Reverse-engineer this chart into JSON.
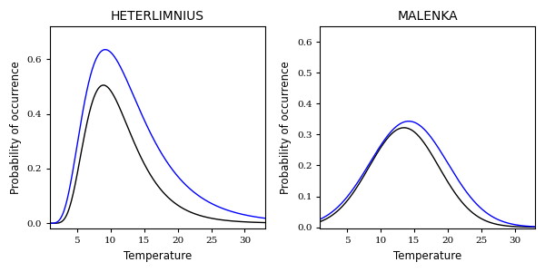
{
  "panels": [
    {
      "title": "HETERLIMNIUS",
      "xlabel": "Temperature",
      "ylabel": "Probability of occurrence",
      "xlim": [
        1,
        33
      ],
      "ylim": [
        -0.02,
        0.72
      ],
      "yticks": [
        0.0,
        0.2,
        0.4,
        0.6
      ],
      "xticks": [
        5,
        10,
        15,
        20,
        25,
        30
      ],
      "black_curve": {
        "type": "lognormal",
        "mu_log": 2.19,
        "sigma_log": 0.4,
        "peak": 0.505
      },
      "blue_curve": {
        "type": "lognormal",
        "mu_log": 2.22,
        "sigma_log": 0.48,
        "peak": 0.635
      }
    },
    {
      "title": "MALENKA",
      "xlabel": "Temperature",
      "ylabel": "Probability of occurrence",
      "xlim": [
        1,
        33
      ],
      "ylim": [
        -0.005,
        0.65
      ],
      "yticks": [
        0.0,
        0.1,
        0.2,
        0.3,
        0.4,
        0.5,
        0.6
      ],
      "xticks": [
        5,
        10,
        15,
        20,
        25,
        30
      ],
      "black_curve": {
        "type": "gaussian",
        "mu": 13.5,
        "sigma": 5.2,
        "peak": 0.322
      },
      "blue_curve": {
        "type": "gaussian",
        "mu": 14.2,
        "sigma": 5.8,
        "peak": 0.343
      }
    }
  ],
  "bg_color": "#ffffff",
  "black_color": "#000000",
  "blue_color": "#0000ff",
  "linewidth": 1.0,
  "title_fontsize": 10,
  "axis_label_fontsize": 8.5,
  "tick_fontsize": 7.5
}
